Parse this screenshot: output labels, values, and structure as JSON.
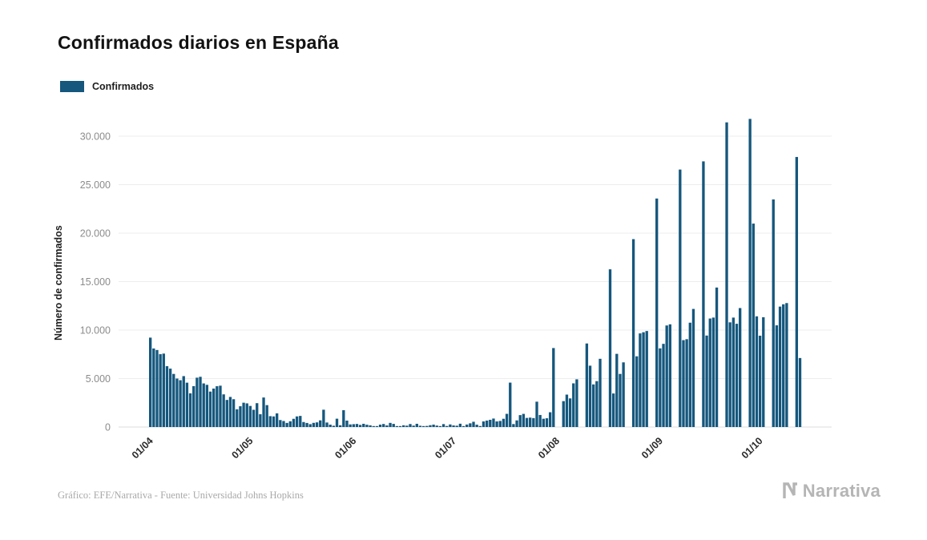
{
  "title": "Confirmados diarios en España",
  "legend": {
    "label": "Confirmados",
    "color": "#15577d"
  },
  "footer": {
    "credit": "Gráfico: EFE/Narrativa - Fuente: Universidad Johns Hopkins",
    "brand": "Narrativa"
  },
  "chart_data": {
    "type": "bar",
    "title": "Confirmados diarios en España",
    "series_name": "Confirmados",
    "bar_color": "#15577d",
    "xlabel": "",
    "ylabel": "Número de confirmados",
    "grid": true,
    "legend_position": "top-left",
    "ylim": [
      0,
      32000
    ],
    "yticks": [
      {
        "value": 0,
        "label": "0"
      },
      {
        "value": 5000,
        "label": "5.000"
      },
      {
        "value": 10000,
        "label": "10.000"
      },
      {
        "value": 15000,
        "label": "15.000"
      },
      {
        "value": 20000,
        "label": "20.000"
      },
      {
        "value": 25000,
        "label": "25.000"
      },
      {
        "value": 30000,
        "label": "30.000"
      }
    ],
    "xticks": [
      {
        "index": 0,
        "label": "01/04"
      },
      {
        "index": 30,
        "label": "01/05"
      },
      {
        "index": 61,
        "label": "01/06"
      },
      {
        "index": 91,
        "label": "01/07"
      },
      {
        "index": 122,
        "label": "01/08"
      },
      {
        "index": 153,
        "label": "01/09"
      },
      {
        "index": 183,
        "label": "01/10"
      }
    ],
    "values": [
      9222,
      8102,
      7947,
      7516,
      7576,
      6278,
      6023,
      5478,
      5002,
      4830,
      5252,
      4576,
      3477,
      4218,
      5092,
      5183,
      4499,
      4353,
      3658,
      3968,
      4211,
      4266,
      3370,
      2796,
      3105,
      2870,
      1831,
      2144,
      2509,
      2441,
      2176,
      1781,
      2462,
      1318,
      3046,
      2260,
      1122,
      1095,
      1410,
      721,
      621,
      426,
      594,
      849,
      1095,
      1147,
      515,
      421,
      295,
      431,
      482,
      688,
      1787,
      466,
      246,
      132,
      859,
      182,
      1737,
      664,
      271,
      294,
      318,
      219,
      334,
      240,
      177,
      48,
      91,
      249,
      313,
      167,
      427,
      323,
      74,
      56,
      181,
      141,
      308,
      144,
      334,
      132,
      94,
      113,
      190,
      249,
      148,
      51,
      301,
      108,
      267,
      164,
      134,
      341,
      48,
      257,
      383,
      543,
      241,
      105,
      582,
      666,
      746,
      875,
      580,
      628,
      852,
      1361,
      4581,
      306,
      685,
      1229,
      1357,
      939,
      971,
      922,
      2615,
      1244,
      855,
      905,
      1525,
      8148,
      0,
      0,
      2672,
      3344,
      2953,
      4507,
      4923,
      0,
      0,
      8618,
      6329,
      4397,
      4734,
      7039,
      0,
      0,
      16269,
      3463,
      7550,
      5479,
      6671,
      0,
      0,
      19382,
      7296,
      9658,
      9779,
      9906,
      0,
      0,
      23572,
      8115,
      8581,
      10476,
      10595,
      0,
      0,
      26560,
      8964,
      9063,
      10764,
      12183,
      0,
      0,
      27404,
      9437,
      11193,
      11291,
      14389,
      0,
      0,
      31428,
      10799,
      11289,
      10653,
      12272,
      0,
      0,
      31785,
      20986,
      11417,
      9419,
      11325,
      0,
      0,
      23480,
      10491,
      12423,
      12662,
      12788,
      0,
      0,
      27856,
      7118
    ]
  }
}
